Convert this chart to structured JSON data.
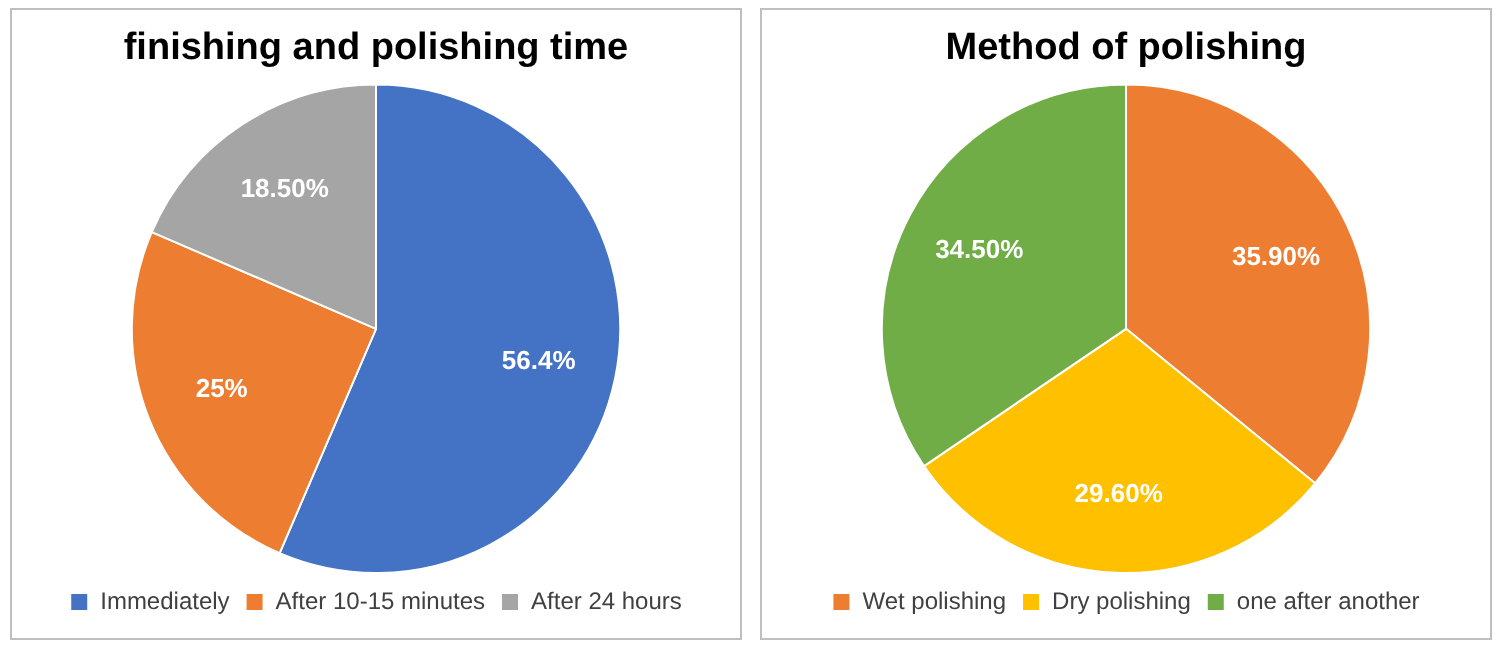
{
  "chart_data": [
    {
      "type": "pie",
      "title": "finishing and polishing time",
      "categories": [
        "Immediately",
        "After 10-15 minutes",
        "After 24 hours"
      ],
      "values": [
        56.4,
        25,
        18.5
      ],
      "colors": [
        "#4472c4",
        "#ed7d31",
        "#a5a5a5"
      ],
      "value_labels": [
        "56.4%",
        "25%",
        "18.50%"
      ],
      "legend": "bottom"
    },
    {
      "type": "pie",
      "title": "Method of polishing",
      "categories": [
        "Wet polishing",
        "Dry polishing",
        "one after another"
      ],
      "values": [
        35.9,
        29.6,
        34.5
      ],
      "colors": [
        "#ed7d31",
        "#ffc000",
        "#70ad47"
      ],
      "value_labels": [
        "35.90%",
        "29.60%",
        "34.50%"
      ],
      "legend": "bottom"
    }
  ]
}
